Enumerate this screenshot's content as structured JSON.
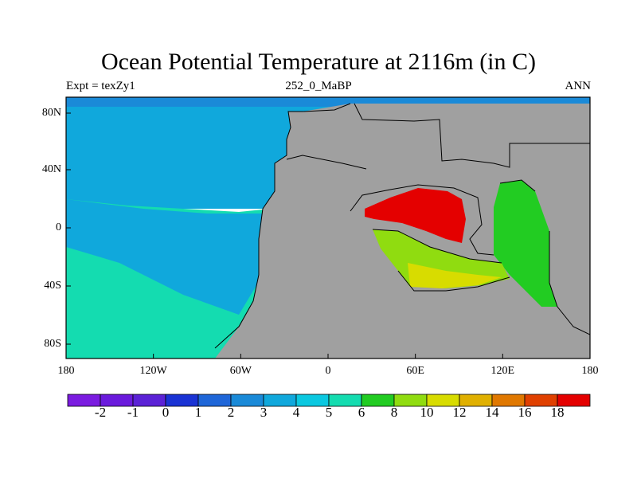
{
  "title": "Ocean Potential Temperature at 2116m (in C)",
  "subtitle_left": "Expt = texZy1",
  "subtitle_center": "252_0_MaBP",
  "subtitle_right": "ANN",
  "lon_ticks": [
    "180",
    "120W",
    "60W",
    "0",
    "60E",
    "120E",
    "180"
  ],
  "lat_ticks": [
    "80N",
    "40N",
    "0",
    "40S",
    "80S"
  ],
  "colorbar": {
    "colors": [
      "#7b1ce0",
      "#6a1adc",
      "#5b22d6",
      "#1a33d4",
      "#1f66d8",
      "#1a8ad8",
      "#10a8dc",
      "#0bc8e0",
      "#14dcb0",
      "#22cc22",
      "#90dc10",
      "#d8dc00",
      "#e0b000",
      "#e07800",
      "#e04000",
      "#e40000"
    ],
    "labels": [
      "-2",
      "-1",
      "0",
      "1",
      "2",
      "3",
      "4",
      "5",
      "6",
      "8",
      "10",
      "12",
      "14",
      "16",
      "18"
    ]
  },
  "colors": {
    "land": "#a0a0a0",
    "arctic": "#1a8ad8",
    "ocean_north": "#10a8dc",
    "ocean_south": "#14dcb0",
    "warm_red": "#e40000",
    "yellow": "#d8dc00",
    "yellow_green": "#90dc10",
    "green": "#22cc22"
  }
}
